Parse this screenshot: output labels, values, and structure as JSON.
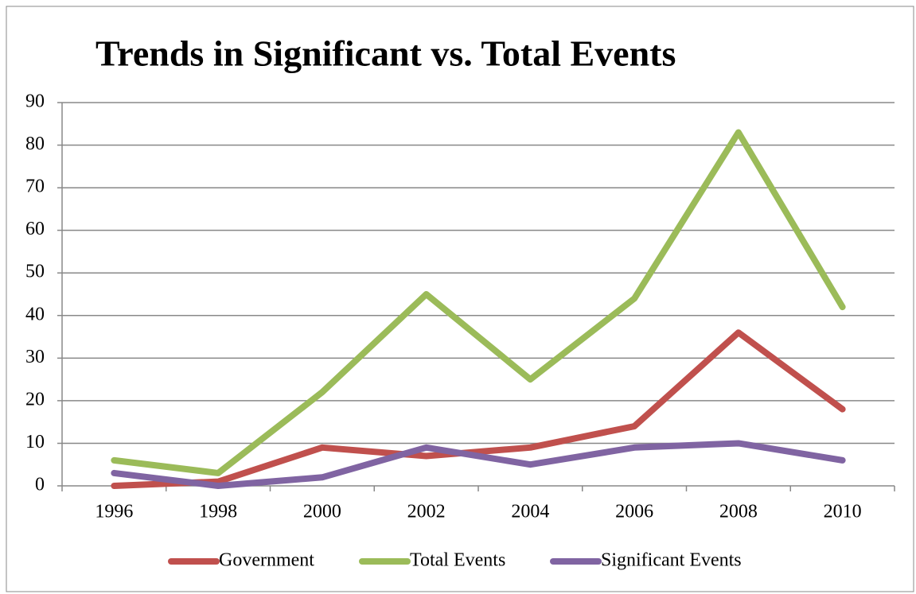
{
  "chart_data": {
    "type": "line",
    "title": "Trends in Significant vs. Total Events",
    "categories": [
      "1996",
      "1998",
      "2000",
      "2002",
      "2004",
      "2006",
      "2008",
      "2010"
    ],
    "series": [
      {
        "name": "Government",
        "color": "#c0504d",
        "values": [
          0,
          1,
          9,
          7,
          9,
          14,
          36,
          18
        ]
      },
      {
        "name": "Total Events",
        "color": "#9bbb59",
        "values": [
          6,
          3,
          22,
          45,
          25,
          44,
          83,
          42
        ]
      },
      {
        "name": "Significant Events",
        "color": "#8064a2",
        "values": [
          3,
          0,
          2,
          9,
          5,
          9,
          10,
          6
        ]
      }
    ],
    "ylim": [
      0,
      90
    ],
    "yticks": [
      0,
      10,
      20,
      30,
      40,
      50,
      60,
      70,
      80,
      90
    ],
    "grid": true,
    "legend": "bottom"
  }
}
